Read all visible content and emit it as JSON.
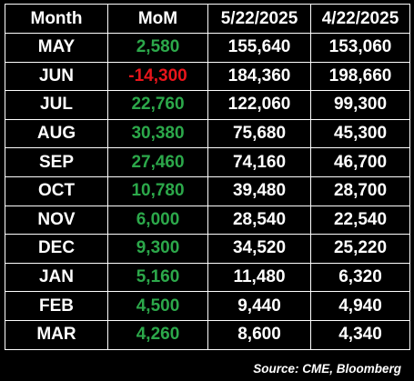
{
  "chart_data": {
    "type": "table",
    "columns": [
      "Month",
      "MoM",
      "5/22/2025",
      "4/22/2025"
    ],
    "rows": [
      {
        "month": "MAY",
        "mom": "2,580",
        "d1": "155,640",
        "d2": "153,060"
      },
      {
        "month": "JUN",
        "mom": "-14,300",
        "d1": "184,360",
        "d2": "198,660"
      },
      {
        "month": "JUL",
        "mom": "22,760",
        "d1": "122,060",
        "d2": "99,300"
      },
      {
        "month": "AUG",
        "mom": "30,380",
        "d1": "75,680",
        "d2": "45,300"
      },
      {
        "month": "SEP",
        "mom": "27,460",
        "d1": "74,160",
        "d2": "46,700"
      },
      {
        "month": "OCT",
        "mom": "10,780",
        "d1": "39,480",
        "d2": "28,700"
      },
      {
        "month": "NOV",
        "mom": "6,000",
        "d1": "28,540",
        "d2": "22,540"
      },
      {
        "month": "DEC",
        "mom": "9,300",
        "d1": "34,520",
        "d2": "25,220"
      },
      {
        "month": "JAN",
        "mom": "5,160",
        "d1": "11,480",
        "d2": "6,320"
      },
      {
        "month": "FEB",
        "mom": "4,500",
        "d1": "9,440",
        "d2": "4,940"
      },
      {
        "month": "MAR",
        "mom": "4,260",
        "d1": "8,600",
        "d2": "4,340"
      }
    ],
    "source": "Source: CME, Bloomberg"
  },
  "colors": {
    "background": "#000000",
    "text": "#ffffff",
    "border": "#ffffff",
    "positive": "#2ca84a",
    "negative": "#e8151b"
  }
}
